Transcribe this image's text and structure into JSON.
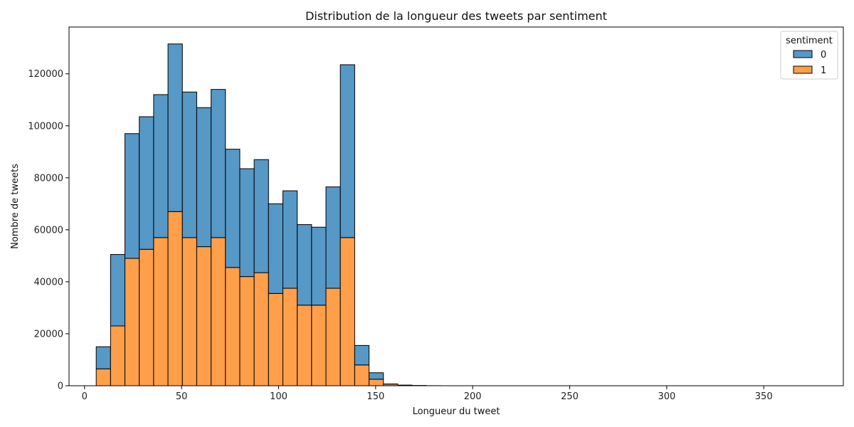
{
  "chart_data": {
    "type": "bar",
    "title": "Distribution de la longueur des tweets par sentiment",
    "xlabel": "Longueur du tweet",
    "ylabel": "Nombre de tweets",
    "xlim": [
      -8,
      391
    ],
    "ylim": [
      0,
      138000
    ],
    "x_ticks": [
      0,
      50,
      100,
      150,
      200,
      250,
      300,
      350
    ],
    "y_ticks": [
      0,
      20000,
      40000,
      60000,
      80000,
      100000,
      120000
    ],
    "stacked": true,
    "grid": false,
    "legend_title": "sentiment",
    "legend_position": "top-right",
    "bin_edges": [
      6.0,
      13.4,
      20.8,
      28.2,
      35.6,
      43.0,
      50.4,
      57.8,
      65.2,
      72.6,
      80.0,
      87.4,
      94.8,
      102.2,
      109.6,
      117.0,
      124.4,
      131.8,
      139.2,
      146.6,
      154.0,
      161.4,
      168.8,
      176.2,
      183.6,
      191.0,
      198.4,
      205.8,
      213.2,
      220.6,
      228.0,
      235.4,
      242.8,
      250.2,
      257.6,
      265.0,
      272.4,
      279.8,
      287.2,
      294.6,
      302.0,
      309.4,
      316.8,
      324.2,
      331.6,
      339.0,
      346.4,
      353.8,
      361.2,
      368.6,
      376.0
    ],
    "series": [
      {
        "name": "1",
        "color": "#ff9f4a",
        "values": [
          6500,
          23000,
          49000,
          52500,
          57000,
          67000,
          57000,
          53500,
          57000,
          45500,
          42000,
          43500,
          35500,
          37500,
          31000,
          31000,
          37500,
          57000,
          8000,
          2500,
          500,
          200,
          100,
          50,
          30,
          20,
          10,
          10,
          10,
          5,
          5,
          5,
          5,
          5,
          5,
          5,
          5,
          5,
          5,
          5,
          5,
          5,
          5,
          5,
          5,
          5,
          5,
          5,
          5,
          5
        ]
      },
      {
        "name": "0",
        "color": "#5698c6",
        "values": [
          8500,
          27500,
          48000,
          51000,
          55000,
          64500,
          56000,
          53500,
          57000,
          45500,
          41500,
          43500,
          34500,
          37500,
          31000,
          30000,
          39000,
          66500,
          7500,
          2500,
          300,
          100,
          50,
          30,
          20,
          10,
          10,
          5,
          5,
          5,
          5,
          5,
          5,
          5,
          5,
          5,
          5,
          5,
          5,
          5,
          5,
          5,
          5,
          5,
          5,
          5,
          5,
          5,
          5,
          5
        ]
      }
    ]
  }
}
